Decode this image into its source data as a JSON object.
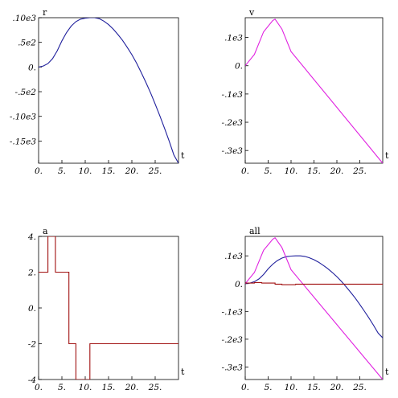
{
  "chart_data": [
    {
      "type": "line",
      "ylabel": "r",
      "xlabel": "t",
      "xlim": [
        0,
        30
      ],
      "ylim": [
        -195,
        100
      ],
      "xticks": [
        0,
        5,
        10,
        15,
        20,
        25
      ],
      "xtick_labels": [
        "0.",
        "5.",
        "10.",
        "15.",
        "20.",
        "25."
      ],
      "yticks": [
        100,
        50,
        0,
        -50,
        -100,
        -150
      ],
      "ytick_labels": [
        ".10e3",
        ".5e2",
        "0.",
        "-.5e2",
        "-.10e3",
        "-.15e3"
      ],
      "series": [
        {
          "color": "#1f1f9c",
          "x": [
            0,
            1,
            2,
            3,
            4,
            5,
            6,
            7,
            8,
            9,
            10,
            11,
            12,
            13,
            14,
            15,
            16,
            17,
            18,
            19,
            20,
            21,
            22,
            23,
            24,
            25,
            26,
            27,
            28,
            29,
            30
          ],
          "y": [
            0,
            2,
            7,
            17,
            33,
            53,
            70,
            83,
            92,
            97,
            99,
            100,
            100,
            98,
            93,
            86,
            77,
            66,
            54,
            40,
            25,
            8,
            -11,
            -31,
            -52,
            -75,
            -99,
            -124,
            -150,
            -178,
            -195
          ]
        }
      ]
    },
    {
      "type": "line",
      "ylabel": "v",
      "xlabel": "t",
      "xlim": [
        0,
        30
      ],
      "ylim": [
        -345,
        170
      ],
      "xticks": [
        0,
        5,
        10,
        15,
        20,
        25
      ],
      "xtick_labels": [
        "0.",
        "5.",
        "10.",
        "15.",
        "20.",
        "25."
      ],
      "yticks": [
        100,
        0,
        -100,
        -200,
        -300
      ],
      "ytick_labels": [
        ".1e3",
        "0.",
        "-.1e3",
        "-.2e3",
        "-.3e3"
      ],
      "series": [
        {
          "color": "#e020e0",
          "x": [
            0,
            2,
            4,
            6,
            6.5,
            8,
            10,
            30
          ],
          "y": [
            0,
            40,
            120,
            160,
            165,
            130,
            50,
            -345
          ]
        }
      ]
    },
    {
      "type": "line",
      "ylabel": "a",
      "xlabel": "t",
      "xlim": [
        0,
        30
      ],
      "ylim": [
        -4,
        4
      ],
      "xticks": [
        0,
        5,
        10,
        15,
        20,
        25
      ],
      "xtick_labels": [
        "0.",
        "5.",
        "10.",
        "15.",
        "20.",
        "25."
      ],
      "yticks": [
        4,
        2,
        0,
        -2,
        -4
      ],
      "ytick_labels": [
        "4.",
        "2.",
        "0.",
        "-2",
        "-4"
      ],
      "series": [
        {
          "color": "#a01010",
          "x": [
            0,
            2,
            2,
            3,
            3,
            3.6,
            3.6,
            5,
            5,
            6.5,
            6.5,
            8,
            8,
            10.3,
            10.3,
            11,
            11,
            30
          ],
          "y": [
            2,
            2,
            4,
            4,
            4,
            4,
            2,
            2,
            2,
            2,
            -2,
            -2,
            -4,
            -4,
            -4,
            -4,
            -2,
            -2
          ]
        }
      ]
    },
    {
      "type": "line",
      "ylabel": "all",
      "xlabel": "t",
      "xlim": [
        0,
        30
      ],
      "ylim": [
        -345,
        170
      ],
      "xticks": [
        0,
        5,
        10,
        15,
        20,
        25
      ],
      "xtick_labels": [
        "0.",
        "5.",
        "10.",
        "15.",
        "20.",
        "25."
      ],
      "yticks": [
        100,
        0,
        -100,
        -200,
        -300
      ],
      "ytick_labels": [
        ".1e3",
        "0.",
        "-.1e3",
        "-.2e3",
        "-.3e3"
      ],
      "series": [
        {
          "color": "#1f1f9c",
          "x": [
            0,
            1,
            2,
            3,
            4,
            5,
            6,
            7,
            8,
            9,
            10,
            11,
            12,
            13,
            14,
            15,
            16,
            17,
            18,
            19,
            20,
            21,
            22,
            23,
            24,
            25,
            26,
            27,
            28,
            29,
            30
          ],
          "y": [
            0,
            2,
            7,
            17,
            33,
            53,
            70,
            83,
            92,
            97,
            99,
            100,
            100,
            98,
            93,
            86,
            77,
            66,
            54,
            40,
            25,
            8,
            -11,
            -31,
            -52,
            -75,
            -99,
            -124,
            -150,
            -178,
            -195
          ]
        },
        {
          "color": "#e020e0",
          "x": [
            0,
            2,
            4,
            6,
            6.5,
            8,
            10,
            30
          ],
          "y": [
            0,
            40,
            120,
            160,
            165,
            130,
            50,
            -345
          ]
        },
        {
          "color": "#a01010",
          "x": [
            0,
            2,
            2,
            3,
            3,
            3.6,
            3.6,
            5,
            5,
            6.5,
            6.5,
            8,
            8,
            10.3,
            10.3,
            11,
            11,
            30
          ],
          "y": [
            2,
            2,
            4,
            4,
            4,
            4,
            2,
            2,
            2,
            2,
            -2,
            -2,
            -4,
            -4,
            -4,
            -4,
            -2,
            -2
          ]
        }
      ]
    }
  ]
}
